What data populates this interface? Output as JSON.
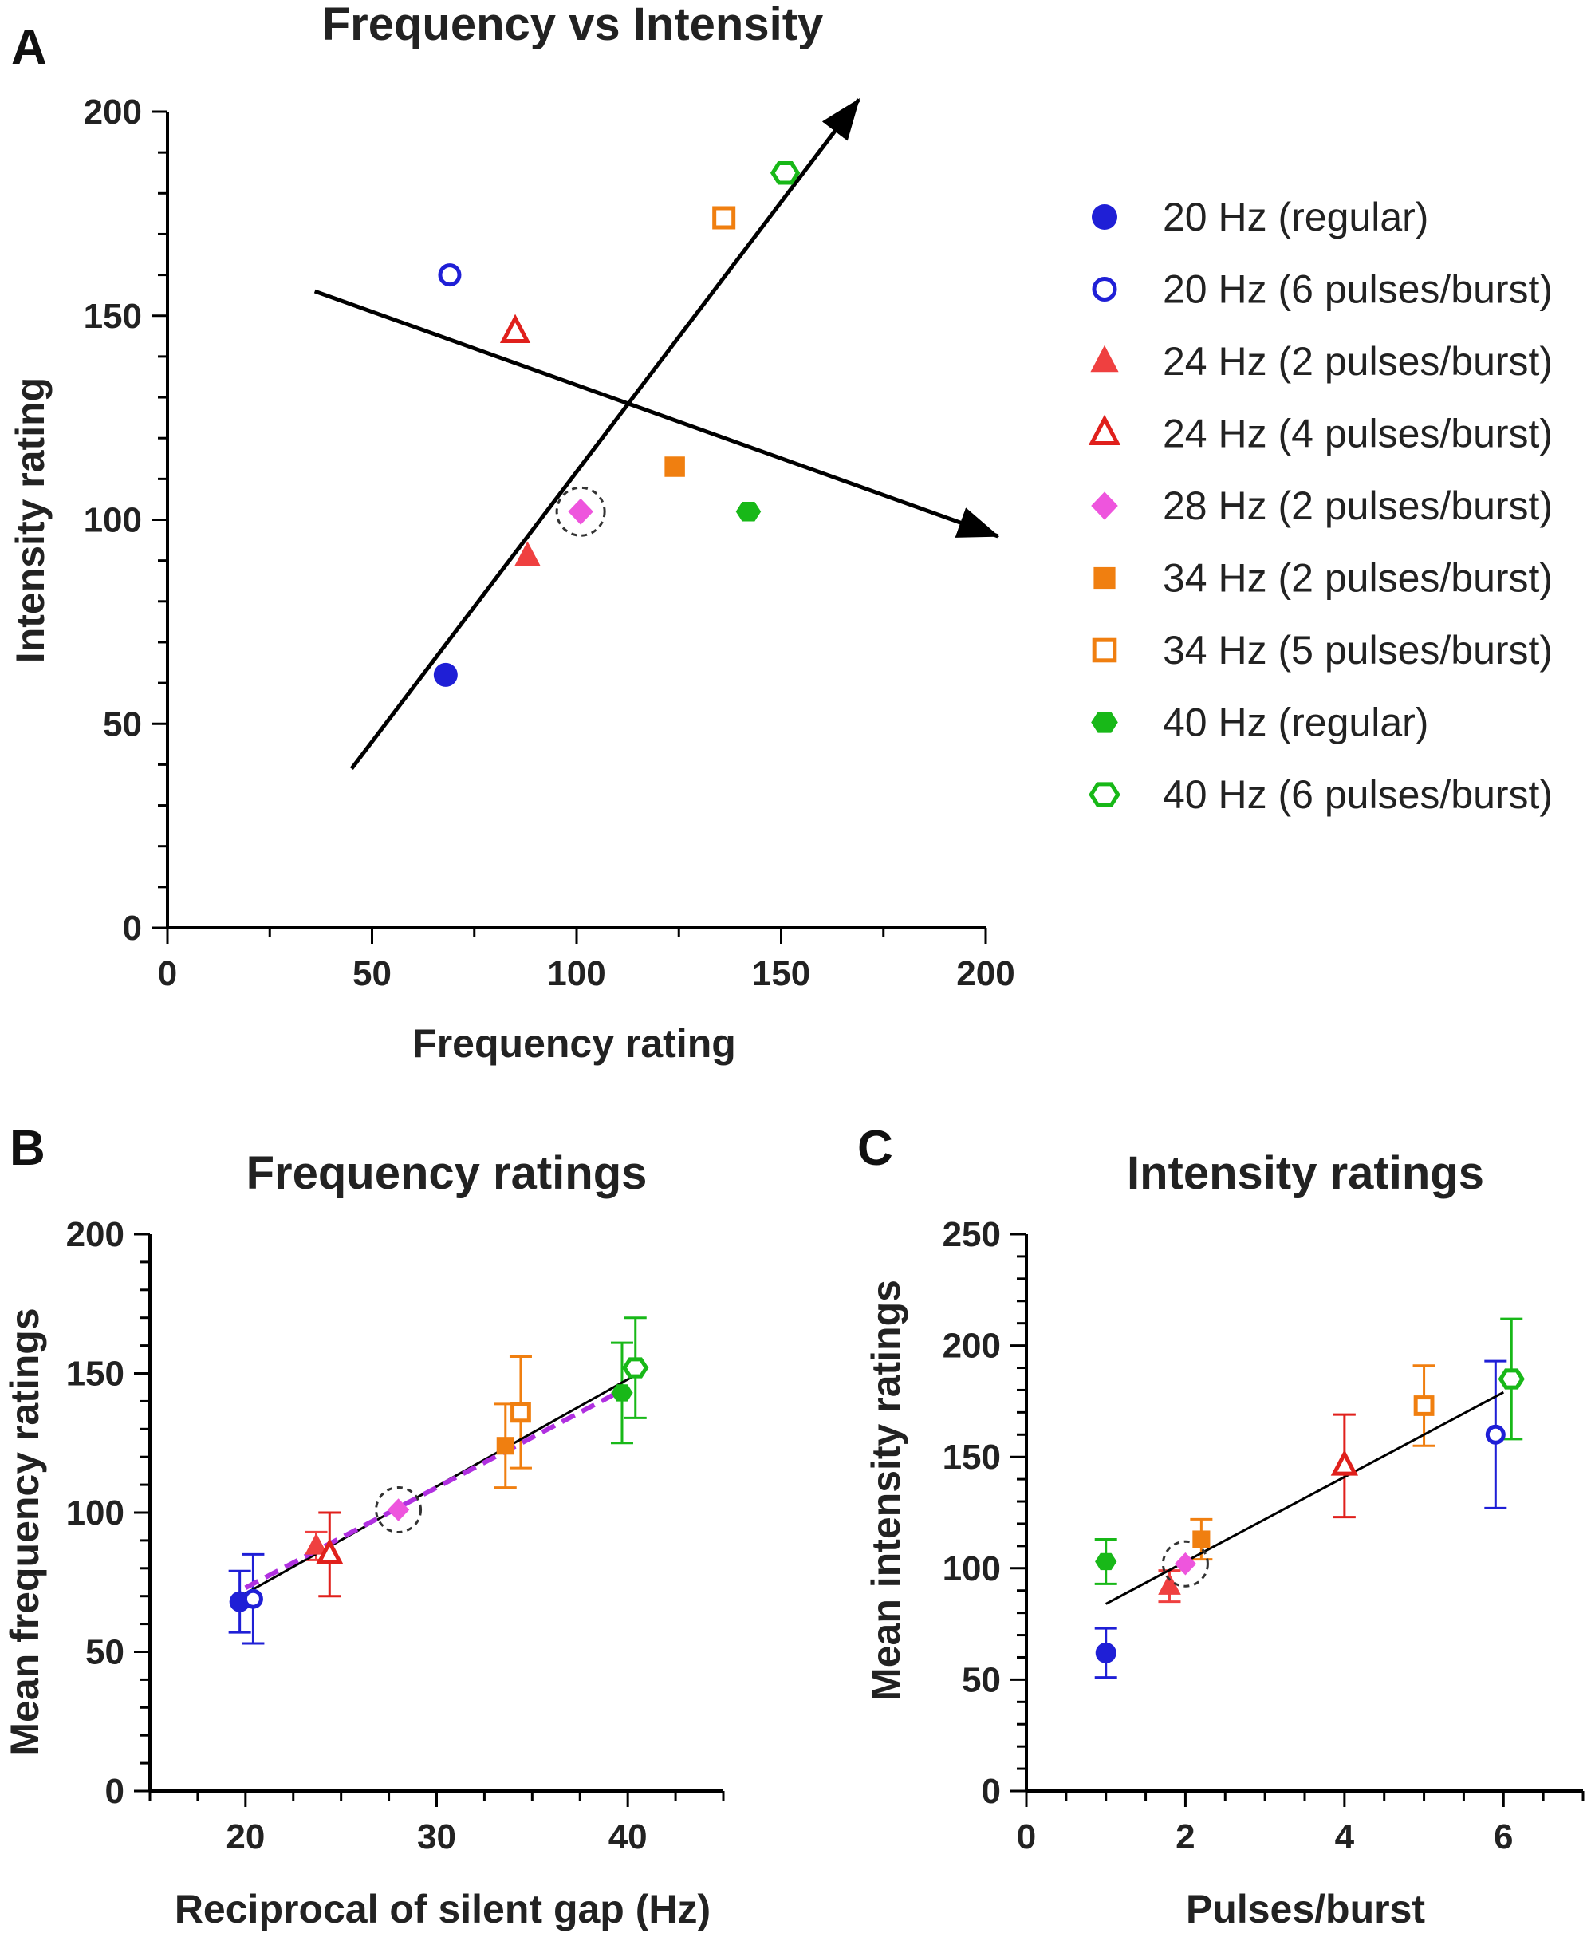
{
  "colors": {
    "blue": "#1f1fd6",
    "red": "#e0201c",
    "pink": "#ee55dd",
    "orange": "#f07f10",
    "green": "#18b818",
    "purple": "#b030e0"
  },
  "legend": [
    {
      "label": "20 Hz (regular)",
      "marker": "circle",
      "filled": true,
      "color": "#1f1fd6"
    },
    {
      "label": "20 Hz (6 pulses/burst)",
      "marker": "circle",
      "filled": false,
      "color": "#1f1fd6"
    },
    {
      "label": "24 Hz (2 pulses/burst)",
      "marker": "triangle",
      "filled": true,
      "color": "#ef4040"
    },
    {
      "label": "24 Hz (4 pulses/burst)",
      "marker": "triangle",
      "filled": false,
      "color": "#e0201c"
    },
    {
      "label": "28 Hz (2 pulses/burst)",
      "marker": "diamond",
      "filled": true,
      "color": "#ee55dd"
    },
    {
      "label": "34 Hz (2 pulses/burst)",
      "marker": "square",
      "filled": true,
      "color": "#f07f10"
    },
    {
      "label": "34 Hz (5 pulses/burst)",
      "marker": "square",
      "filled": false,
      "color": "#f07f10"
    },
    {
      "label": "40 Hz (regular)",
      "marker": "hexagon",
      "filled": true,
      "color": "#18b818"
    },
    {
      "label": "40 Hz (6 pulses/burst)",
      "marker": "hexagon",
      "filled": false,
      "color": "#18b818"
    }
  ],
  "chart_data": [
    {
      "panel": "A",
      "type": "scatter",
      "title": "Frequency vs Intensity",
      "xlabel": "Frequency rating",
      "ylabel": "Intensity rating",
      "xlim": [
        0,
        200
      ],
      "ylim": [
        0,
        200
      ],
      "xticks": [
        "0",
        "50",
        "100",
        "150",
        "200"
      ],
      "yticks": [
        "0",
        "50",
        "100",
        "150",
        "200"
      ],
      "points": [
        {
          "series": 0,
          "x": 68,
          "y": 62
        },
        {
          "series": 1,
          "x": 69,
          "y": 160
        },
        {
          "series": 2,
          "x": 88,
          "y": 91
        },
        {
          "series": 3,
          "x": 85,
          "y": 146
        },
        {
          "series": 4,
          "x": 101,
          "y": 102,
          "highlight": true
        },
        {
          "series": 5,
          "x": 124,
          "y": 113
        },
        {
          "series": 6,
          "x": 136,
          "y": 174
        },
        {
          "series": 7,
          "x": 142,
          "y": 102
        },
        {
          "series": 8,
          "x": 151,
          "y": 185
        }
      ],
      "arrows": [
        {
          "from": [
            45,
            39
          ],
          "to": [
            169,
            203
          ]
        },
        {
          "from": [
            36,
            156
          ],
          "to": [
            203,
            96
          ]
        }
      ]
    },
    {
      "panel": "B",
      "type": "scatter",
      "title": "Frequency ratings",
      "xlabel": "Reciprocal of silent gap (Hz)",
      "ylabel": "Mean frequency ratings",
      "xlim": [
        15,
        45
      ],
      "ylim": [
        0,
        200
      ],
      "xticks": [
        "20",
        "30",
        "40"
      ],
      "yticks": [
        "0",
        "50",
        "100",
        "150",
        "200"
      ],
      "points": [
        {
          "series": 0,
          "x": 19.7,
          "y": 68,
          "err": 11
        },
        {
          "series": 1,
          "x": 20.4,
          "y": 69,
          "err": 16
        },
        {
          "series": 2,
          "x": 23.7,
          "y": 88,
          "err": 5
        },
        {
          "series": 3,
          "x": 24.4,
          "y": 85,
          "err": 15
        },
        {
          "series": 4,
          "x": 28,
          "y": 101,
          "highlight": true
        },
        {
          "series": 5,
          "x": 33.6,
          "y": 124,
          "err": 15
        },
        {
          "series": 6,
          "x": 34.4,
          "y": 136,
          "err": 20
        },
        {
          "series": 7,
          "x": 39.7,
          "y": 143,
          "err": 18
        },
        {
          "series": 8,
          "x": 40.4,
          "y": 152,
          "err": 18
        }
      ],
      "fit_line": {
        "x": [
          19.5,
          40.3
        ],
        "y": [
          69,
          149
        ]
      },
      "dashed_line": {
        "x": [
          20,
          40
        ],
        "y": [
          73,
          145
        ]
      }
    },
    {
      "panel": "C",
      "type": "scatter",
      "title": "Intensity ratings",
      "xlabel": "Pulses/burst",
      "ylabel": "Mean intensity ratings",
      "xlim": [
        0,
        7
      ],
      "ylim": [
        0,
        250
      ],
      "xticks": [
        "0",
        "2",
        "4",
        "6"
      ],
      "yticks": [
        "0",
        "50",
        "100",
        "150",
        "200",
        "250"
      ],
      "points": [
        {
          "series": 0,
          "x": 1,
          "y": 62,
          "err": 11
        },
        {
          "series": 1,
          "x": 5.9,
          "y": 160,
          "err": 33
        },
        {
          "series": 2,
          "x": 1.8,
          "y": 92,
          "err": 7
        },
        {
          "series": 3,
          "x": 4,
          "y": 146,
          "err": 23
        },
        {
          "series": 4,
          "x": 2,
          "y": 102,
          "highlight": true
        },
        {
          "series": 5,
          "x": 2.2,
          "y": 113,
          "err": 9
        },
        {
          "series": 6,
          "x": 5,
          "y": 173,
          "err": 18
        },
        {
          "series": 7,
          "x": 1,
          "y": 103,
          "err": 10
        },
        {
          "series": 8,
          "x": 6.1,
          "y": 185,
          "err": 27
        }
      ],
      "fit_line": {
        "x": [
          1,
          6
        ],
        "y": [
          84,
          179
        ]
      }
    }
  ]
}
